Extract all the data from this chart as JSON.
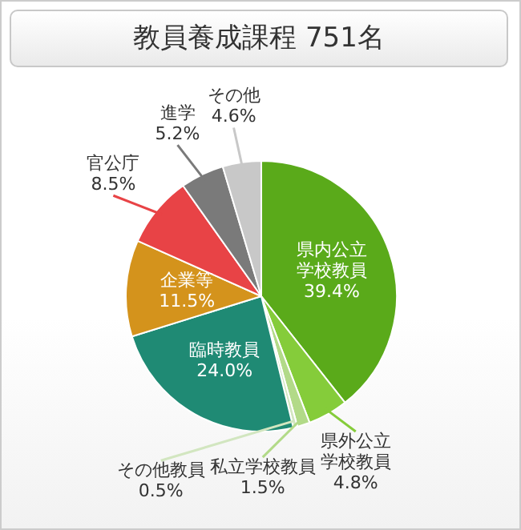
{
  "chart_data": {
    "type": "pie",
    "title": "教員養成課程 751名",
    "categories": [
      "県内公立学校教員",
      "県外公立学校教員",
      "私立学校教員",
      "その他教員",
      "臨時教員",
      "企業等",
      "官公庁",
      "進学",
      "その他"
    ],
    "values": [
      39.4,
      4.8,
      1.5,
      0.5,
      24.0,
      11.5,
      8.5,
      5.2,
      4.6
    ],
    "value_labels": [
      "39.4%",
      "4.8%",
      "1.5%",
      "0.5%",
      "24.0%",
      "11.5%",
      "8.5%",
      "5.2%",
      "4.6%"
    ],
    "colors": [
      "#5aaa1a",
      "#85cc3a",
      "#b2da88",
      "#d2e6c0",
      "#1f8a74",
      "#d4931c",
      "#e84346",
      "#7a7a7a",
      "#c8c8c8"
    ],
    "legend": false
  }
}
